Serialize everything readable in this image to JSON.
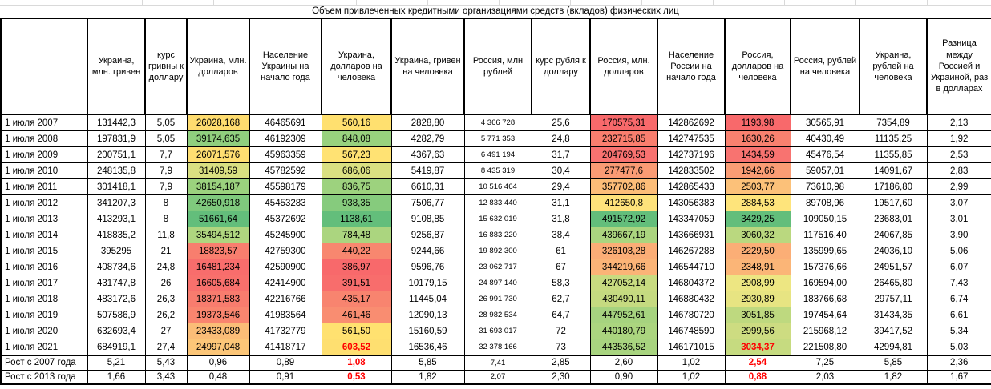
{
  "title": "Объем привлеченных кредитными организациями средств (вкладов) физических лиц",
  "columns": [
    {
      "id": "ua-uah-mln",
      "label": "Украина, млн. гривен"
    },
    {
      "id": "uah-usd-rate",
      "label": "курс гривны к доллару"
    },
    {
      "id": "ua-usd-mln",
      "label": "Украина, млн. долларов"
    },
    {
      "id": "ua-population",
      "label": "Население Украины на начало года"
    },
    {
      "id": "ua-usd-per-capita",
      "label": "Украина, долларов на человека"
    },
    {
      "id": "ua-uah-per-capita",
      "label": "Украина, гривен на человека"
    },
    {
      "id": "ru-rub-mln",
      "label": "Россия, млн рублей"
    },
    {
      "id": "rub-usd-rate",
      "label": "курс рубля к доллару"
    },
    {
      "id": "ru-usd-mln",
      "label": "Россия, млн. долларов"
    },
    {
      "id": "ru-population",
      "label": "Население России на начало года"
    },
    {
      "id": "ru-usd-per-capita",
      "label": "Россия, долларов на человека"
    },
    {
      "id": "ru-rub-per-capita",
      "label": "Россия, рублей на человека"
    },
    {
      "id": "ua-rub-per-capita",
      "label": "Украина, рублей на человека"
    },
    {
      "id": "diff-ru-ua",
      "label": "Разница между Россией и Украиной, раз в долларах"
    }
  ],
  "accent_colors": {
    "negative_text": "#ff0000",
    "scale_red": "#F8696B",
    "scale_yellow": "#FFEB84",
    "scale_green": "#63BE7B"
  },
  "rows": [
    {
      "label": "1 июля 2007",
      "cells": [
        {
          "v": "131442,3"
        },
        {
          "v": "5,05"
        },
        {
          "v": "26028,168",
          "bg": "#FEDC6F"
        },
        {
          "v": "46465691"
        },
        {
          "v": "560,16",
          "bg": "#FFE06F"
        },
        {
          "v": "2828,80"
        },
        {
          "v": "4 366 728"
        },
        {
          "v": "25,6"
        },
        {
          "v": "170575,31",
          "bg": "#F8696B"
        },
        {
          "v": "142862692"
        },
        {
          "v": "1193,98",
          "bg": "#F8696B"
        },
        {
          "v": "30565,91"
        },
        {
          "v": "7354,89"
        },
        {
          "v": "2,13"
        }
      ]
    },
    {
      "label": "1 июля 2008",
      "cells": [
        {
          "v": "197831,9"
        },
        {
          "v": "5,05"
        },
        {
          "v": "39174,635",
          "bg": "#90CF7E"
        },
        {
          "v": "46192309"
        },
        {
          "v": "848,08",
          "bg": "#98D17E"
        },
        {
          "v": "4282,79"
        },
        {
          "v": "5 771 353"
        },
        {
          "v": "24,8"
        },
        {
          "v": "232715,85",
          "bg": "#F97E6E"
        },
        {
          "v": "142747535"
        },
        {
          "v": "1630,26",
          "bg": "#F8816F"
        },
        {
          "v": "40430,49"
        },
        {
          "v": "11135,25"
        },
        {
          "v": "1,92"
        }
      ]
    },
    {
      "label": "1 июля 2009",
      "cells": [
        {
          "v": "200751,1"
        },
        {
          "v": "7,7"
        },
        {
          "v": "26071,576",
          "bg": "#FEDE71"
        },
        {
          "v": "45963359"
        },
        {
          "v": "567,23",
          "bg": "#FFE273"
        },
        {
          "v": "4367,63"
        },
        {
          "v": "6 491 194"
        },
        {
          "v": "31,7"
        },
        {
          "v": "204769,53",
          "bg": "#F87270"
        },
        {
          "v": "142737196"
        },
        {
          "v": "1434,59",
          "bg": "#F87370"
        },
        {
          "v": "45476,54"
        },
        {
          "v": "11355,85"
        },
        {
          "v": "2,53"
        }
      ]
    },
    {
      "label": "1 июля 2010",
      "cells": [
        {
          "v": "248135,8"
        },
        {
          "v": "7,9"
        },
        {
          "v": "31409,59",
          "bg": "#D9DF81"
        },
        {
          "v": "45782592"
        },
        {
          "v": "686,06",
          "bg": "#DAE081"
        },
        {
          "v": "5419,87"
        },
        {
          "v": "8 435 319"
        },
        {
          "v": "30,4"
        },
        {
          "v": "277477,6",
          "bg": "#FA9B74"
        },
        {
          "v": "142833502"
        },
        {
          "v": "1942,66",
          "bg": "#FA9C74"
        },
        {
          "v": "59057,01"
        },
        {
          "v": "14091,67"
        },
        {
          "v": "2,83"
        }
      ]
    },
    {
      "label": "1 июля 2011",
      "cells": [
        {
          "v": "301418,1"
        },
        {
          "v": "7,9"
        },
        {
          "v": "38154,187",
          "bg": "#9BD27E"
        },
        {
          "v": "45598179"
        },
        {
          "v": "836,75",
          "bg": "#9DD27E"
        },
        {
          "v": "6610,31"
        },
        {
          "v": "10 516 464"
        },
        {
          "v": "29,4"
        },
        {
          "v": "357702,86",
          "bg": "#FCBD78"
        },
        {
          "v": "142865433"
        },
        {
          "v": "2503,77",
          "bg": "#FCC179"
        },
        {
          "v": "73610,98"
        },
        {
          "v": "17186,80"
        },
        {
          "v": "2,99"
        }
      ]
    },
    {
      "label": "1 июля 2012",
      "cells": [
        {
          "v": "341207,3"
        },
        {
          "v": "8"
        },
        {
          "v": "42650,918",
          "bg": "#7FC97D"
        },
        {
          "v": "45453283"
        },
        {
          "v": "938,35",
          "bg": "#86CB7D"
        },
        {
          "v": "7506,77"
        },
        {
          "v": "12 833 440"
        },
        {
          "v": "31,1"
        },
        {
          "v": "412650,8",
          "bg": "#FEE27B"
        },
        {
          "v": "143056383"
        },
        {
          "v": "2884,53",
          "bg": "#FEE47B"
        },
        {
          "v": "89708,96"
        },
        {
          "v": "19517,60"
        },
        {
          "v": "3,07"
        }
      ]
    },
    {
      "label": "1 июля 2013",
      "cells": [
        {
          "v": "413293,1"
        },
        {
          "v": "8"
        },
        {
          "v": "51661,64",
          "bg": "#63BE7B"
        },
        {
          "v": "45372692"
        },
        {
          "v": "1138,61",
          "bg": "#63BE7B"
        },
        {
          "v": "9108,85"
        },
        {
          "v": "15 632 019"
        },
        {
          "v": "31,8"
        },
        {
          "v": "491572,92",
          "bg": "#63BE7B"
        },
        {
          "v": "143347059"
        },
        {
          "v": "3429,25",
          "bg": "#63BE7B"
        },
        {
          "v": "109050,15"
        },
        {
          "v": "23683,01"
        },
        {
          "v": "3,01"
        }
      ]
    },
    {
      "label": "1 июля 2014",
      "cells": [
        {
          "v": "418835,2"
        },
        {
          "v": "11,8"
        },
        {
          "v": "35494,512",
          "bg": "#AFD67F"
        },
        {
          "v": "45245900"
        },
        {
          "v": "784,48",
          "bg": "#ABD57F"
        },
        {
          "v": "9256,87"
        },
        {
          "v": "16 883 220"
        },
        {
          "v": "38,4"
        },
        {
          "v": "439667,19",
          "bg": "#ABD57F"
        },
        {
          "v": "143666931"
        },
        {
          "v": "3060,32",
          "bg": "#BAD87F"
        },
        {
          "v": "117516,40"
        },
        {
          "v": "24067,85"
        },
        {
          "v": "3,90"
        }
      ]
    },
    {
      "label": "1 июля 2015",
      "cells": [
        {
          "v": "395295"
        },
        {
          "v": "21"
        },
        {
          "v": "18823,57",
          "bg": "#F87E6E"
        },
        {
          "v": "42759300"
        },
        {
          "v": "440,22",
          "bg": "#F8876F"
        },
        {
          "v": "9244,66"
        },
        {
          "v": "19 892 300"
        },
        {
          "v": "61"
        },
        {
          "v": "326103,28",
          "bg": "#FBAD76"
        },
        {
          "v": "146267288"
        },
        {
          "v": "2229,50",
          "bg": "#FBAE76"
        },
        {
          "v": "135999,65"
        },
        {
          "v": "24036,10"
        },
        {
          "v": "5,06"
        }
      ]
    },
    {
      "label": "1 июля 2016",
      "cells": [
        {
          "v": "408734,6"
        },
        {
          "v": "24,8"
        },
        {
          "v": "16481,234",
          "bg": "#F86D6C"
        },
        {
          "v": "42590900"
        },
        {
          "v": "386,97",
          "bg": "#F8696B"
        },
        {
          "v": "9596,76"
        },
        {
          "v": "23 062 717"
        },
        {
          "v": "67"
        },
        {
          "v": "344219,66",
          "bg": "#FBB477"
        },
        {
          "v": "146544710"
        },
        {
          "v": "2348,91",
          "bg": "#FBB577"
        },
        {
          "v": "157376,66"
        },
        {
          "v": "24951,57"
        },
        {
          "v": "6,07"
        }
      ]
    },
    {
      "label": "1 июля 2017",
      "cells": [
        {
          "v": "431747,8"
        },
        {
          "v": "26"
        },
        {
          "v": "16605,684",
          "bg": "#F8706C"
        },
        {
          "v": "42414900"
        },
        {
          "v": "391,51",
          "bg": "#F86D6C"
        },
        {
          "v": "10179,15"
        },
        {
          "v": "24 897 140"
        },
        {
          "v": "58,3"
        },
        {
          "v": "427052,14",
          "bg": "#C8DB80"
        },
        {
          "v": "146804372"
        },
        {
          "v": "2908,99",
          "bg": "#EDE682"
        },
        {
          "v": "169594,00"
        },
        {
          "v": "26465,80"
        },
        {
          "v": "7,43"
        }
      ]
    },
    {
      "label": "1 июля 2018",
      "cells": [
        {
          "v": "483172,6"
        },
        {
          "v": "26,3"
        },
        {
          "v": "18371,583",
          "bg": "#F87C6E"
        },
        {
          "v": "42216766"
        },
        {
          "v": "435,17",
          "bg": "#F8846F"
        },
        {
          "v": "11445,04"
        },
        {
          "v": "26 991 730"
        },
        {
          "v": "62,7"
        },
        {
          "v": "430490,11",
          "bg": "#C5DA80"
        },
        {
          "v": "146880432"
        },
        {
          "v": "2930,89",
          "bg": "#E7E482"
        },
        {
          "v": "183766,68"
        },
        {
          "v": "29757,11"
        },
        {
          "v": "6,74"
        }
      ]
    },
    {
      "label": "1 июля 2019",
      "cells": [
        {
          "v": "507586,9"
        },
        {
          "v": "26,2"
        },
        {
          "v": "19373,546",
          "bg": "#F9856F"
        },
        {
          "v": "41983564"
        },
        {
          "v": "461,46",
          "bg": "#F98D71"
        },
        {
          "v": "12090,13"
        },
        {
          "v": "28 982 534"
        },
        {
          "v": "64,7"
        },
        {
          "v": "447952,61",
          "bg": "#A6D37F"
        },
        {
          "v": "146780720"
        },
        {
          "v": "3051,85",
          "bg": "#BED97F"
        },
        {
          "v": "197454,64"
        },
        {
          "v": "31434,35"
        },
        {
          "v": "6,61"
        }
      ]
    },
    {
      "label": "1 июля 2020",
      "cells": [
        {
          "v": "632693,4"
        },
        {
          "v": "27"
        },
        {
          "v": "23433,089",
          "bg": "#FBBD77"
        },
        {
          "v": "41732779"
        },
        {
          "v": "561,50",
          "bg": "#FFE170"
        },
        {
          "v": "15160,59"
        },
        {
          "v": "31 693 017"
        },
        {
          "v": "72"
        },
        {
          "v": "440180,79",
          "bg": "#ABD57F"
        },
        {
          "v": "146748590"
        },
        {
          "v": "2999,56",
          "bg": "#CDDC81"
        },
        {
          "v": "215968,12"
        },
        {
          "v": "39417,52"
        },
        {
          "v": "5,34"
        }
      ]
    },
    {
      "label": "1 июля 2021",
      "cells": [
        {
          "v": "684919,1"
        },
        {
          "v": "27,4"
        },
        {
          "v": "24997,048",
          "bg": "#FCC678"
        },
        {
          "v": "41418717"
        },
        {
          "v": "603,52",
          "bg": "#FEDF70",
          "red": true
        },
        {
          "v": "16536,46"
        },
        {
          "v": "32 378 166"
        },
        {
          "v": "73"
        },
        {
          "v": "443536,52",
          "bg": "#A8D47F"
        },
        {
          "v": "146171015"
        },
        {
          "v": "3034,37",
          "bg": "#C6DB80",
          "red": true
        },
        {
          "v": "221508,80"
        },
        {
          "v": "42994,81"
        },
        {
          "v": "5,03"
        }
      ]
    }
  ],
  "growth_rows": [
    {
      "label": "Рост с 2007 года",
      "cells": [
        {
          "v": "5,21"
        },
        {
          "v": "5,43"
        },
        {
          "v": "0,96"
        },
        {
          "v": "0,89"
        },
        {
          "v": "1,08",
          "red": true
        },
        {
          "v": "5,85"
        },
        {
          "v": "7,41"
        },
        {
          "v": "2,85"
        },
        {
          "v": "2,60"
        },
        {
          "v": "1,02"
        },
        {
          "v": "2,54",
          "red": true
        },
        {
          "v": "7,25"
        },
        {
          "v": "5,85"
        },
        {
          "v": "2,36"
        }
      ]
    },
    {
      "label": "Рост с 2013 года",
      "cells": [
        {
          "v": "1,66"
        },
        {
          "v": "3,43"
        },
        {
          "v": "0,48"
        },
        {
          "v": "0,91"
        },
        {
          "v": "0,53",
          "red": true
        },
        {
          "v": "1,82"
        },
        {
          "v": "2,07"
        },
        {
          "v": "2,30"
        },
        {
          "v": "0,90"
        },
        {
          "v": "1,02"
        },
        {
          "v": "0,88",
          "red": true
        },
        {
          "v": "2,03"
        },
        {
          "v": "1,82"
        },
        {
          "v": "1,67"
        }
      ]
    }
  ]
}
